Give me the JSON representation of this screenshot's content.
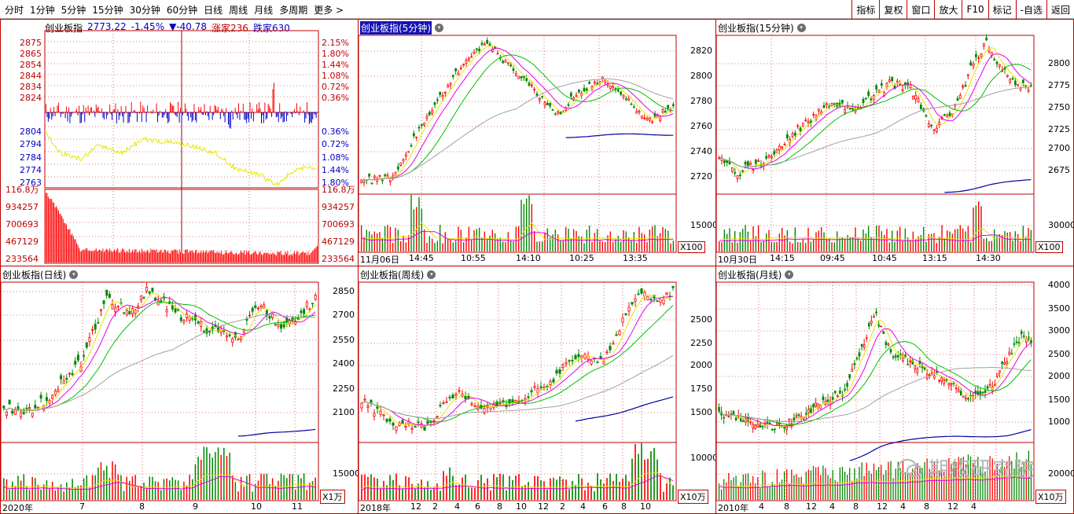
{
  "toolbar": {
    "left": [
      "分时",
      "1分钟",
      "5分钟",
      "15分钟",
      "30分钟",
      "60分钟",
      "日线",
      "周线",
      "月线",
      "多周期",
      "更多 >"
    ],
    "right": [
      "指标",
      "复权",
      "窗口",
      "放大",
      "F10",
      "标记",
      "-自选",
      "返回"
    ]
  },
  "intraday": {
    "name": "创业板指",
    "price": "2773.22",
    "change_pct": "-1.45%",
    "change": "▼-40.78",
    "up_label": "涨家",
    "up_count": "236",
    "down_label": "跌家",
    "down_count": "630",
    "price_ticks": [
      "2875",
      "2865",
      "2854",
      "2844",
      "2834",
      "2824",
      "2804",
      "2794",
      "2784",
      "2774",
      "2763"
    ],
    "pct_ticks_up": [
      "2.15%",
      "1.80%",
      "1.44%",
      "1.08%",
      "0.72%",
      "0.36%"
    ],
    "pct_ticks_down": [
      "0.36%",
      "0.72%",
      "1.08%",
      "1.44%",
      "1.80%"
    ],
    "vol_ticks": [
      "116.8万",
      "934257",
      "700693",
      "467129",
      "233564"
    ],
    "vol_ticks_right": [
      "116.8万",
      "934257",
      "700693",
      "467129",
      "233564"
    ]
  },
  "m5": {
    "title": "创业板指(5分钟)",
    "price_ticks": [
      "2820",
      "2800",
      "2780",
      "2760",
      "2740",
      "2720"
    ],
    "vol_tick": "15000",
    "vol_unit": "X100",
    "x_labels": [
      "11月06日",
      "14:45",
      "10:55",
      "14:10",
      "10:25",
      "13:35"
    ]
  },
  "m15": {
    "title": "创业板指(15分钟)",
    "price_ticks": [
      "2800",
      "2775",
      "2750",
      "2725",
      "2700",
      "2675"
    ],
    "vol_tick": "30000",
    "vol_unit": "X100",
    "x_labels": [
      "10月30日",
      "14:15",
      "09:45",
      "10:45",
      "13:15",
      "14:30"
    ]
  },
  "daily": {
    "title": "创业板指(日线)",
    "price_ticks": [
      "2850",
      "2700",
      "2550",
      "2400",
      "2250",
      "2100"
    ],
    "vol_tick": "15000",
    "vol_unit": "X1万",
    "x_labels": [
      "2020年",
      "7",
      "8",
      "9",
      "10",
      "11"
    ]
  },
  "weekly": {
    "title": "创业板指(周线)",
    "price_ticks": [
      "2500",
      "2250",
      "2000",
      "1750",
      "1500"
    ],
    "vol_tick": "10000",
    "vol_unit": "X10万",
    "x_labels": [
      "2018年",
      "12",
      "2",
      "4",
      "6",
      "8",
      "10",
      "12",
      "2",
      "4",
      "6",
      "8",
      "10"
    ]
  },
  "monthly": {
    "title": "创业板指(月线)",
    "price_ticks": [
      "4000",
      "3500",
      "3000",
      "2500",
      "2000",
      "1500",
      "1000"
    ],
    "vol_tick": "20000",
    "vol_unit": "X10万",
    "x_labels": [
      "2010年",
      "4",
      "8",
      "12",
      "4",
      "8",
      "12",
      "4",
      "8",
      "12",
      "4"
    ]
  },
  "watermark": "期权研究院",
  "colors": {
    "up": "#ff0000",
    "down": "#008800",
    "grid": "#c00000",
    "ma5": "#e6e600",
    "ma10": "#e600e6",
    "ma20": "#00c000",
    "ma60": "#a0a0a0",
    "ma120": "#0000a0"
  }
}
